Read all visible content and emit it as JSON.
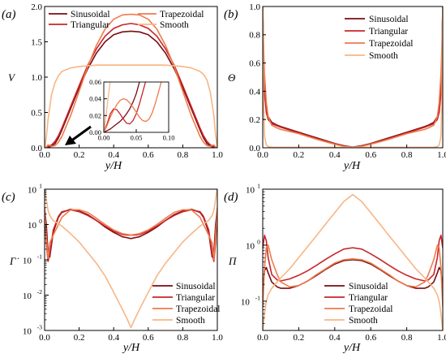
{
  "figure": {
    "x_axis_label": "y/H",
    "series_names": [
      "Sinusoidal",
      "Triangular",
      "Trapezoidal",
      "Smooth"
    ],
    "series_colors": [
      "#7a0c12",
      "#c8242a",
      "#ef7a4a",
      "#f8b584"
    ]
  },
  "chart_data": [
    {
      "panel_label": "(a)",
      "type": "line",
      "ylabel": "V",
      "xlim": [
        0,
        1.0
      ],
      "ylim": [
        0,
        2.0
      ],
      "x_ticks": [
        "0.0",
        "0.2",
        "0.4",
        "0.6",
        "0.8",
        "1.0"
      ],
      "y_ticks": [
        "0.0",
        "0.5",
        "1.0",
        "1.5",
        "2.0"
      ],
      "legend": "top (two columns)",
      "x": [
        0,
        0.01,
        0.02,
        0.04,
        0.06,
        0.08,
        0.1,
        0.15,
        0.2,
        0.25,
        0.3,
        0.35,
        0.4,
        0.45,
        0.5,
        0.55,
        0.6,
        0.65,
        0.7,
        0.75,
        0.8,
        0.85,
        0.9,
        0.92,
        0.94,
        0.96,
        0.98,
        0.99,
        1.0
      ],
      "series": [
        {
          "name": "Sinusoidal",
          "values": [
            0,
            0,
            0.01,
            0.02,
            0.06,
            0.14,
            0.25,
            0.55,
            0.85,
            1.12,
            1.34,
            1.5,
            1.6,
            1.64,
            1.65,
            1.64,
            1.6,
            1.5,
            1.34,
            1.12,
            0.85,
            0.55,
            0.25,
            0.14,
            0.06,
            0.02,
            0.01,
            0,
            0
          ]
        },
        {
          "name": "Triangular",
          "values": [
            0,
            0,
            0.02,
            0.04,
            0.09,
            0.17,
            0.28,
            0.58,
            0.88,
            1.17,
            1.4,
            1.58,
            1.69,
            1.74,
            1.76,
            1.74,
            1.69,
            1.58,
            1.4,
            1.17,
            0.88,
            0.58,
            0.28,
            0.17,
            0.09,
            0.04,
            0.02,
            0,
            0
          ]
        },
        {
          "name": "Trapezoidal",
          "values": [
            0,
            0.01,
            0.04,
            0.02,
            0.03,
            0.08,
            0.16,
            0.45,
            0.8,
            1.15,
            1.45,
            1.68,
            1.82,
            1.88,
            1.89,
            1.88,
            1.82,
            1.68,
            1.45,
            1.15,
            0.8,
            0.45,
            0.16,
            0.08,
            0.03,
            0.02,
            0.04,
            0.01,
            0
          ]
        },
        {
          "name": "Smooth",
          "values": [
            0,
            0.15,
            0.4,
            0.75,
            0.92,
            1.02,
            1.08,
            1.13,
            1.15,
            1.16,
            1.17,
            1.17,
            1.17,
            1.17,
            1.17,
            1.17,
            1.17,
            1.17,
            1.17,
            1.16,
            1.15,
            1.13,
            1.08,
            1.04,
            0.96,
            0.78,
            0.45,
            0.18,
            0
          ]
        }
      ],
      "inset": {
        "xlim": [
          0,
          0.1
        ],
        "ylim": [
          0,
          0.06
        ],
        "x_ticks": [
          "0.00",
          "0.05",
          "0.10"
        ],
        "y_ticks": [
          "0.00",
          "0.02",
          "0.04",
          "0.06"
        ],
        "x": [
          0,
          0.005,
          0.01,
          0.015,
          0.02,
          0.025,
          0.03,
          0.035,
          0.04,
          0.045,
          0.05,
          0.055,
          0.06,
          0.065,
          0.07,
          0.075,
          0.08,
          0.085,
          0.09,
          0.095,
          0.1
        ],
        "series": [
          {
            "name": "Sinusoidal",
            "values": [
              0,
              0.002,
              0.004,
              0.007,
              0.01,
              0.013,
              0.017,
              0.022,
              0.028,
              0.036,
              0.046,
              0.06,
              null,
              null,
              null,
              null,
              null,
              null,
              null,
              null,
              null
            ]
          },
          {
            "name": "Triangular",
            "values": [
              0,
              0.01,
              0.022,
              0.028,
              0.027,
              0.022,
              0.016,
              0.011,
              0.01,
              0.014,
              0.022,
              0.034,
              0.048,
              0.062,
              null,
              null,
              null,
              null,
              null,
              null,
              null
            ]
          },
          {
            "name": "Trapezoidal",
            "values": [
              0,
              0.008,
              0.018,
              0.026,
              0.033,
              0.038,
              0.04,
              0.039,
              0.035,
              0.03,
              0.024,
              0.018,
              0.014,
              0.013,
              0.016,
              0.024,
              0.036,
              0.05,
              0.064,
              null,
              null
            ]
          },
          {
            "name": "Smooth",
            "values": [
              0,
              0.03,
              0.062,
              null,
              null,
              null,
              null,
              null,
              null,
              null,
              null,
              null,
              null,
              null,
              null,
              null,
              null,
              null,
              null,
              null,
              null
            ]
          }
        ]
      }
    },
    {
      "panel_label": "(b)",
      "type": "line",
      "ylabel": "Θ",
      "xlim": [
        0,
        1.0
      ],
      "ylim": [
        0,
        1.0
      ],
      "x_ticks": [
        "0.0",
        "0.2",
        "0.4",
        "0.6",
        "0.8",
        "1.0"
      ],
      "y_ticks": [
        "0.0",
        "0.2",
        "0.4",
        "0.6",
        "0.8",
        "1.0"
      ],
      "legend": "top-right",
      "x": [
        0,
        0.005,
        0.01,
        0.02,
        0.03,
        0.05,
        0.08,
        0.1,
        0.15,
        0.2,
        0.25,
        0.3,
        0.35,
        0.4,
        0.45,
        0.5,
        0.55,
        0.6,
        0.65,
        0.7,
        0.75,
        0.8,
        0.85,
        0.9,
        0.92,
        0.95,
        0.97,
        0.98,
        0.99,
        0.995,
        1.0
      ],
      "series": [
        {
          "name": "Sinusoidal",
          "values": [
            1.0,
            0.62,
            0.42,
            0.28,
            0.22,
            0.18,
            0.16,
            0.15,
            0.13,
            0.11,
            0.09,
            0.07,
            0.05,
            0.03,
            0.015,
            0.005,
            0.015,
            0.03,
            0.05,
            0.07,
            0.09,
            0.11,
            0.13,
            0.15,
            0.16,
            0.18,
            0.22,
            0.28,
            0.42,
            0.62,
            1.0
          ]
        },
        {
          "name": "Triangular",
          "values": [
            1.0,
            0.58,
            0.38,
            0.25,
            0.2,
            0.17,
            0.155,
            0.145,
            0.125,
            0.105,
            0.085,
            0.065,
            0.045,
            0.028,
            0.012,
            0.004,
            0.012,
            0.028,
            0.045,
            0.065,
            0.085,
            0.105,
            0.125,
            0.145,
            0.155,
            0.17,
            0.2,
            0.25,
            0.38,
            0.58,
            1.0
          ]
        },
        {
          "name": "Trapezoidal",
          "values": [
            1.0,
            0.7,
            0.52,
            0.32,
            0.22,
            0.16,
            0.14,
            0.13,
            0.115,
            0.1,
            0.08,
            0.06,
            0.042,
            0.025,
            0.01,
            0.003,
            0.01,
            0.025,
            0.042,
            0.06,
            0.08,
            0.1,
            0.115,
            0.13,
            0.14,
            0.16,
            0.22,
            0.32,
            0.52,
            0.7,
            1.0
          ]
        },
        {
          "name": "Smooth",
          "values": [
            1.0,
            0.3,
            0.08,
            0.02,
            0.008,
            0.004,
            0.003,
            0.003,
            0.003,
            0.003,
            0.003,
            0.003,
            0.003,
            0.003,
            0.003,
            0.003,
            0.003,
            0.003,
            0.003,
            0.003,
            0.003,
            0.003,
            0.003,
            0.003,
            0.003,
            0.004,
            0.008,
            0.02,
            0.08,
            0.3,
            1.0
          ]
        }
      ]
    },
    {
      "panel_label": "(c)",
      "type": "line",
      "ylabel": "Γ̇",
      "y_scale": "log",
      "xlim": [
        0,
        1.0
      ],
      "ylim": [
        0.001,
        10
      ],
      "x_ticks": [
        "0.0",
        "0.2",
        "0.4",
        "0.6",
        "0.8",
        "1.0"
      ],
      "y_ticks": [
        "10",
        "10",
        "10",
        "10",
        "10"
      ],
      "y_tick_exponents": [
        "-3",
        "-2",
        "-1",
        "0",
        "1"
      ],
      "legend": "bottom-right",
      "x": [
        0,
        0.01,
        0.02,
        0.03,
        0.05,
        0.08,
        0.1,
        0.15,
        0.2,
        0.25,
        0.3,
        0.35,
        0.4,
        0.45,
        0.48,
        0.5,
        0.52,
        0.55,
        0.6,
        0.65,
        0.7,
        0.75,
        0.8,
        0.85,
        0.9,
        0.92,
        0.95,
        0.97,
        0.98,
        0.99,
        1.0
      ],
      "series": [
        {
          "name": "Sinusoidal",
          "values": [
            2.8,
            1.0,
            0.15,
            0.12,
            0.6,
            1.6,
            2.2,
            2.7,
            2.4,
            1.9,
            1.3,
            0.85,
            0.6,
            0.45,
            0.42,
            0.4,
            0.42,
            0.45,
            0.6,
            0.85,
            1.3,
            1.9,
            2.4,
            2.7,
            2.2,
            1.6,
            0.6,
            0.12,
            0.15,
            1.0,
            2.8
          ]
        },
        {
          "name": "Triangular",
          "values": [
            2.5,
            0.3,
            0.09,
            0.15,
            0.7,
            1.7,
            2.3,
            2.6,
            2.3,
            1.8,
            1.3,
            0.9,
            0.65,
            0.52,
            0.5,
            0.5,
            0.5,
            0.52,
            0.65,
            0.9,
            1.3,
            1.8,
            2.3,
            2.6,
            2.3,
            1.7,
            0.7,
            0.15,
            0.09,
            0.3,
            2.5
          ]
        },
        {
          "name": "Trapezoidal",
          "values": [
            3.0,
            0.5,
            0.1,
            0.3,
            0.5,
            1.0,
            1.6,
            2.6,
            2.6,
            2.2,
            1.5,
            1.0,
            0.7,
            0.55,
            0.52,
            0.5,
            0.52,
            0.55,
            0.7,
            1.0,
            1.5,
            2.2,
            2.6,
            2.6,
            1.6,
            1.0,
            0.5,
            0.3,
            0.1,
            0.5,
            3.0
          ]
        },
        {
          "name": "Smooth",
          "values": [
            12,
            5,
            2.5,
            1.8,
            1.3,
            1.05,
            0.9,
            0.55,
            0.32,
            0.16,
            0.08,
            0.035,
            0.012,
            0.004,
            0.002,
            0.0012,
            0.002,
            0.004,
            0.012,
            0.035,
            0.08,
            0.16,
            0.32,
            0.55,
            0.9,
            1.05,
            1.3,
            1.8,
            2.5,
            5,
            12
          ]
        }
      ]
    },
    {
      "panel_label": "(d)",
      "type": "line",
      "ylabel": "Π",
      "y_scale": "log",
      "xlim": [
        0,
        1.0
      ],
      "ylim": [
        0.03,
        10
      ],
      "x_ticks": [
        "0.0",
        "0.2",
        "0.4",
        "0.6",
        "0.8",
        "1.0"
      ],
      "y_ticks": [
        "10",
        "10",
        "10"
      ],
      "y_tick_exponents": [
        "-1",
        "0",
        "1"
      ],
      "legend": "bottom-center",
      "x": [
        0,
        0.01,
        0.02,
        0.03,
        0.05,
        0.08,
        0.1,
        0.15,
        0.2,
        0.25,
        0.3,
        0.35,
        0.4,
        0.45,
        0.5,
        0.55,
        0.6,
        0.65,
        0.7,
        0.75,
        0.8,
        0.85,
        0.9,
        0.92,
        0.95,
        0.97,
        0.98,
        0.99,
        1.0
      ],
      "series": [
        {
          "name": "Sinusoidal",
          "values": [
            0.15,
            0.35,
            0.4,
            0.32,
            0.22,
            0.18,
            0.17,
            0.17,
            0.19,
            0.23,
            0.29,
            0.37,
            0.46,
            0.53,
            0.55,
            0.53,
            0.46,
            0.37,
            0.29,
            0.23,
            0.19,
            0.17,
            0.17,
            0.18,
            0.22,
            0.32,
            0.4,
            0.35,
            0.15
          ]
        },
        {
          "name": "Triangular",
          "values": [
            0.9,
            1.5,
            1.2,
            0.6,
            0.3,
            0.24,
            0.23,
            0.25,
            0.29,
            0.35,
            0.44,
            0.56,
            0.7,
            0.85,
            0.9,
            0.85,
            0.7,
            0.56,
            0.44,
            0.35,
            0.29,
            0.25,
            0.23,
            0.24,
            0.3,
            0.6,
            1.2,
            1.5,
            0.9
          ]
        },
        {
          "name": "Trapezoidal",
          "values": [
            0.08,
            0.4,
            0.9,
            1.0,
            0.55,
            0.3,
            0.22,
            0.18,
            0.19,
            0.23,
            0.3,
            0.38,
            0.48,
            0.55,
            0.57,
            0.55,
            0.48,
            0.38,
            0.3,
            0.23,
            0.19,
            0.18,
            0.22,
            0.3,
            0.55,
            1.0,
            0.9,
            0.4,
            0.08
          ]
        },
        {
          "name": "Smooth",
          "values": [
            0.03,
            0.06,
            0.1,
            0.13,
            0.17,
            0.22,
            0.26,
            0.38,
            0.6,
            0.95,
            1.5,
            2.4,
            3.8,
            6.0,
            8.0,
            6.0,
            3.8,
            2.4,
            1.5,
            0.95,
            0.6,
            0.38,
            0.26,
            0.22,
            0.17,
            0.13,
            0.1,
            0.06,
            0.03
          ]
        }
      ]
    }
  ]
}
